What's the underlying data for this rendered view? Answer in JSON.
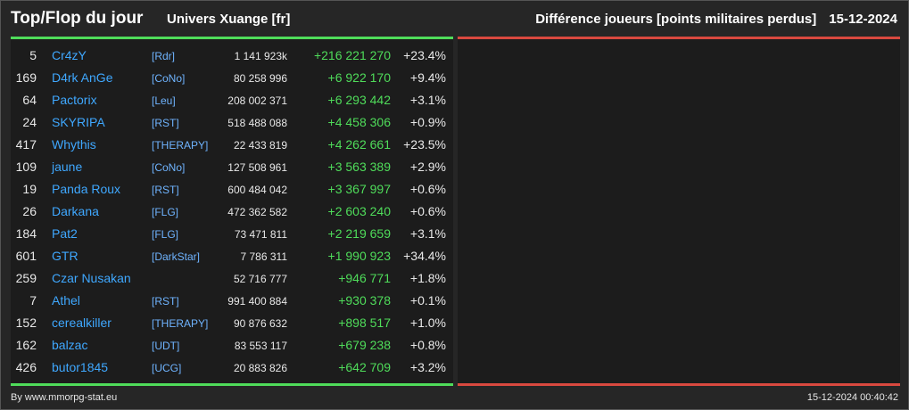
{
  "header": {
    "title": "Top/Flop du jour",
    "universe": "Univers Xuange [fr]",
    "subtitle": "Différence joueurs [points militaires perdus]",
    "date": "15-12-2024"
  },
  "top_rows": [
    {
      "rank": "5",
      "name": "Cr4zY",
      "ally": "[Rdr]",
      "points": "1 141 923k",
      "diff": "+216 221 270",
      "pct": "+23.4%"
    },
    {
      "rank": "169",
      "name": "D4rk AnGe",
      "ally": "[CoNo]",
      "points": "80 258 996",
      "diff": "+6 922 170",
      "pct": "+9.4%"
    },
    {
      "rank": "64",
      "name": "Pactorix",
      "ally": "[Leu]",
      "points": "208 002 371",
      "diff": "+6 293 442",
      "pct": "+3.1%"
    },
    {
      "rank": "24",
      "name": "SKYRIPA",
      "ally": "[RST]",
      "points": "518 488 088",
      "diff": "+4 458 306",
      "pct": "+0.9%"
    },
    {
      "rank": "417",
      "name": "Whythis",
      "ally": "[THERAPY]",
      "points": "22 433 819",
      "diff": "+4 262 661",
      "pct": "+23.5%"
    },
    {
      "rank": "109",
      "name": "jaune",
      "ally": "[CoNo]",
      "points": "127 508 961",
      "diff": "+3 563 389",
      "pct": "+2.9%"
    },
    {
      "rank": "19",
      "name": "Panda Roux",
      "ally": "[RST]",
      "points": "600 484 042",
      "diff": "+3 367 997",
      "pct": "+0.6%"
    },
    {
      "rank": "26",
      "name": "Darkana",
      "ally": "[FLG]",
      "points": "472 362 582",
      "diff": "+2 603 240",
      "pct": "+0.6%"
    },
    {
      "rank": "184",
      "name": "Pat2",
      "ally": "[FLG]",
      "points": "73 471 811",
      "diff": "+2 219 659",
      "pct": "+3.1%"
    },
    {
      "rank": "601",
      "name": "GTR",
      "ally": "[DarkStar]",
      "points": "7 786 311",
      "diff": "+1 990 923",
      "pct": "+34.4%"
    },
    {
      "rank": "259",
      "name": "Czar Nusakan",
      "ally": "",
      "points": "52 716 777",
      "diff": "+946 771",
      "pct": "+1.8%"
    },
    {
      "rank": "7",
      "name": "Athel",
      "ally": "[RST]",
      "points": "991 400 884",
      "diff": "+930 378",
      "pct": "+0.1%"
    },
    {
      "rank": "152",
      "name": "cerealkiller",
      "ally": "[THERAPY]",
      "points": "90 876 632",
      "diff": "+898 517",
      "pct": "+1.0%"
    },
    {
      "rank": "162",
      "name": "balzac",
      "ally": "[UDT]",
      "points": "83 553 117",
      "diff": "+679 238",
      "pct": "+0.8%"
    },
    {
      "rank": "426",
      "name": "butor1845",
      "ally": "[UCG]",
      "points": "20 883 826",
      "diff": "+642 709",
      "pct": "+3.2%"
    }
  ],
  "footer": {
    "credit": "By www.mmorpg-stat.eu",
    "timestamp": "15-12-2024 00:40:42"
  },
  "colors": {
    "top_accent": "#4fdc5a",
    "flop_accent": "#d9493f",
    "name_link": "#3fa8ff"
  }
}
